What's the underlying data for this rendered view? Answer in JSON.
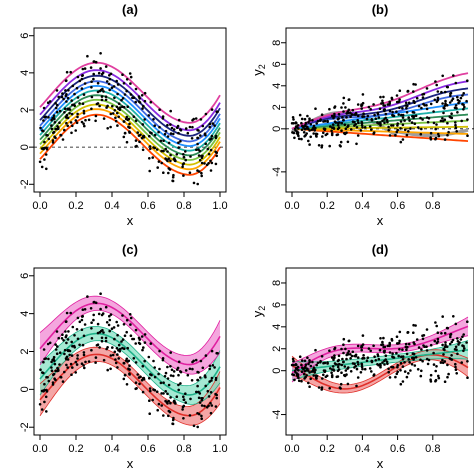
{
  "chart_data": [
    {
      "panel": "(a)",
      "type": "line",
      "title": "(a)",
      "xlabel": "x",
      "ylabel": "",
      "xlim": [
        0,
        1
      ],
      "ylim": [
        -2.2,
        6.2
      ],
      "xticks": [
        0.0,
        0.2,
        0.4,
        0.6,
        0.8,
        1.0
      ],
      "xtick_labels": [
        "0.0",
        "0.2",
        "0.4",
        "0.6",
        "0.8",
        "1.0"
      ],
      "yticks": [
        -2,
        0,
        2,
        4,
        6
      ],
      "ytick_labels": [
        "-2",
        "0",
        "2",
        "4",
        "6"
      ],
      "reference_line_y": 0,
      "series": [
        {
          "offset": -0.9,
          "color": "#ff4500",
          "band": false
        },
        {
          "offset": -0.6,
          "color": "#ffa500",
          "band": false
        },
        {
          "offset": -0.35,
          "color": "#d4c000",
          "band": false
        },
        {
          "offset": -0.1,
          "color": "#7ac142",
          "band": false
        },
        {
          "offset": 0.15,
          "color": "#2e8b57",
          "band": false
        },
        {
          "offset": 0.4,
          "color": "#20b2aa",
          "band": false
        },
        {
          "offset": 0.65,
          "color": "#1e90ff",
          "band": false
        },
        {
          "offset": 0.9,
          "color": "#4169e1",
          "band": false
        },
        {
          "offset": 1.2,
          "color": "#1a237e",
          "band": false
        },
        {
          "offset": 1.5,
          "color": "#8a2be2",
          "band": false
        },
        {
          "offset": 1.9,
          "color": "#e040a0",
          "band": false
        }
      ]
    },
    {
      "panel": "(b)",
      "type": "line",
      "title": "(b)",
      "xlabel": "x",
      "ylabel": "y",
      "ylabel_sub": "2",
      "xlim": [
        0,
        1
      ],
      "ylim": [
        -5.5,
        9
      ],
      "xticks": [
        0.0,
        0.2,
        0.4,
        0.6,
        0.8
      ],
      "xtick_labels": [
        "0.0",
        "0.2",
        "0.4",
        "0.6",
        "0.8"
      ],
      "yticks": [
        -4,
        0,
        2,
        4,
        6,
        8
      ],
      "ytick_labels": [
        "-4",
        "0",
        "2",
        "4",
        "6",
        "8"
      ],
      "reference_line_y": 0,
      "series": [
        {
          "slope": -1.2,
          "amp": 0,
          "color": "#ff4500",
          "band": false
        },
        {
          "slope": -0.5,
          "amp": 0,
          "color": "#ffa500",
          "band": false
        },
        {
          "slope": 0.2,
          "amp": 0,
          "color": "#d4c000",
          "band": false
        },
        {
          "slope": 0.8,
          "amp": 0,
          "color": "#7ac142",
          "band": false
        },
        {
          "slope": 1.4,
          "amp": 0,
          "color": "#2e8b57",
          "band": false
        },
        {
          "slope": 2.0,
          "amp": 0,
          "color": "#20b2aa",
          "band": false
        },
        {
          "slope": 2.6,
          "amp": 0,
          "color": "#1e90ff",
          "band": false
        },
        {
          "slope": 3.2,
          "amp": 0,
          "color": "#4169e1",
          "band": false
        },
        {
          "slope": 3.8,
          "amp": 0,
          "color": "#1a237e",
          "band": false
        },
        {
          "slope": 4.5,
          "amp": 0,
          "color": "#8a2be2",
          "band": false
        },
        {
          "slope": 5.3,
          "amp": 0,
          "color": "#e040a0",
          "band": false
        }
      ],
      "gray_curve": {
        "color": "#9e9e9e"
      }
    },
    {
      "panel": "(c)",
      "type": "line",
      "title": "(c)",
      "xlabel": "x",
      "ylabel": "",
      "xlim": [
        0,
        1
      ],
      "ylim": [
        -2.2,
        6.2
      ],
      "xticks": [
        0.0,
        0.2,
        0.4,
        0.6,
        0.8,
        1.0
      ],
      "xtick_labels": [
        "0.0",
        "0.2",
        "0.4",
        "0.6",
        "0.8",
        "1.0"
      ],
      "yticks": [
        -2,
        0,
        2,
        4,
        6
      ],
      "ytick_labels": [
        "-2",
        "0",
        "2",
        "4",
        "6"
      ],
      "series": [
        {
          "offset": -0.8,
          "color": "#e0302a",
          "band": true,
          "band_color": "#f08080"
        },
        {
          "offset": 0.3,
          "color": "#20b28a",
          "band": true,
          "band_color": "#7fe0c0"
        },
        {
          "offset": 1.9,
          "color": "#e020a0",
          "band": true,
          "band_color": "#f080d0"
        }
      ]
    },
    {
      "panel": "(d)",
      "type": "line",
      "title": "(d)",
      "xlabel": "x",
      "ylabel": "y",
      "ylabel_sub": "2",
      "xlim": [
        0,
        1
      ],
      "ylim": [
        -5.5,
        9
      ],
      "xticks": [
        0.0,
        0.2,
        0.4,
        0.6,
        0.8
      ],
      "xtick_labels": [
        "0.0",
        "0.2",
        "0.4",
        "0.6",
        "0.8"
      ],
      "yticks": [
        -4,
        0,
        2,
        4,
        6,
        8
      ],
      "ytick_labels": [
        "-4",
        "0",
        "2",
        "4",
        "6",
        "8"
      ],
      "series": [
        {
          "slope": -0.2,
          "amp": -1.0,
          "color": "#e0302a",
          "band": true,
          "band_color": "#f08080"
        },
        {
          "slope": 2.0,
          "amp": 0,
          "color": "#20b28a",
          "band": true,
          "band_color": "#7fe0c0"
        },
        {
          "slope": 4.3,
          "amp": 0.4,
          "color": "#e020a0",
          "band": true,
          "band_color": "#f080d0"
        }
      ]
    }
  ]
}
